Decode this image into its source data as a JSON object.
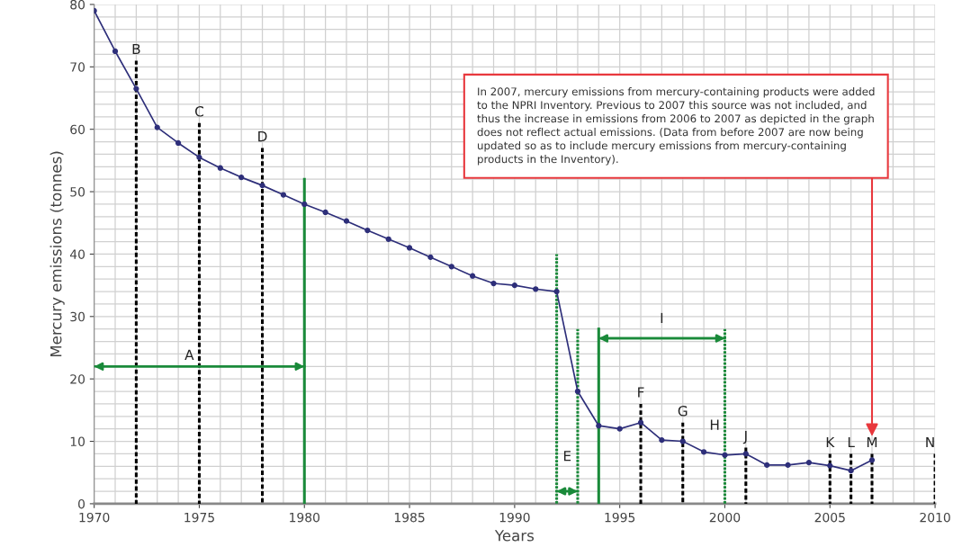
{
  "chart_data": {
    "type": "line",
    "xlabel": "Years",
    "ylabel": "Mercury emissions (tonnes)",
    "xlim": [
      1970,
      2010
    ],
    "ylim": [
      0,
      80
    ],
    "xticks": [
      1970,
      1975,
      1980,
      1985,
      1990,
      1995,
      2000,
      2005,
      2010
    ],
    "yticks": [
      0,
      10,
      20,
      30,
      40,
      50,
      60,
      70,
      80
    ],
    "grid": true,
    "series": [
      {
        "color": "#2e2f7a",
        "marker": "circle",
        "line_style": "solid",
        "x": [
          1970,
          1971,
          1972,
          1973,
          1974,
          1975,
          1976,
          1977,
          1978,
          1979,
          1980,
          1981,
          1982,
          1983,
          1984,
          1985,
          1986,
          1987,
          1988,
          1989,
          1990,
          1991,
          1992,
          1993,
          1994,
          1995,
          1996,
          1997,
          1998,
          1999,
          2000,
          2001,
          2002,
          2003,
          2004,
          2005,
          2006,
          2007
        ],
        "values": [
          79,
          72.5,
          66.5,
          60.3,
          57.8,
          55.5,
          53.8,
          52.3,
          51,
          49.5,
          48,
          46.7,
          45.3,
          43.8,
          42.4,
          41,
          39.5,
          38,
          36.5,
          35.3,
          35,
          34.4,
          34,
          18,
          12.5,
          12,
          13,
          10.2,
          10,
          8.3,
          7.8,
          8,
          6.2,
          6.2,
          6.6,
          6.1,
          5.3,
          7
        ]
      },
      {
        "color": "#000000",
        "line_style": "dashed",
        "x": [
          1972,
          1972
        ],
        "values": [
          0,
          71
        ]
      },
      {
        "color": "#000000",
        "line_style": "dashed",
        "x": [
          1975,
          1975
        ],
        "values": [
          0,
          61
        ]
      },
      {
        "color": "#000000",
        "line_style": "dashed",
        "x": [
          1978,
          1978
        ],
        "values": [
          0,
          57
        ]
      },
      {
        "color": "#1a8a3a",
        "line_style": "solid",
        "x": [
          1980,
          1980
        ],
        "values": [
          0,
          52
        ]
      },
      {
        "color": "#1a8a3a",
        "line_style": "dotted",
        "x": [
          1992,
          1992
        ],
        "values": [
          0,
          40
        ]
      },
      {
        "color": "#1a8a3a",
        "line_style": "dotted",
        "x": [
          1993,
          1993
        ],
        "values": [
          0,
          28
        ]
      },
      {
        "color": "#1a8a3a",
        "line_style": "solid",
        "x": [
          1994,
          1994
        ],
        "values": [
          0,
          28
        ]
      },
      {
        "color": "#1a8a3a",
        "line_style": "dotted",
        "x": [
          2000,
          2000
        ],
        "values": [
          0,
          28
        ]
      },
      {
        "color": "#000000",
        "line_style": "dashed",
        "x": [
          1996,
          1996
        ],
        "values": [
          0,
          16
        ]
      },
      {
        "color": "#000000",
        "line_style": "dashed",
        "x": [
          1998,
          1998
        ],
        "values": [
          0,
          13
        ]
      },
      {
        "color": "#000000",
        "line_style": "dashed",
        "x": [
          2001,
          2001
        ],
        "values": [
          0,
          9
        ]
      },
      {
        "color": "#000000",
        "line_style": "dashed",
        "x": [
          2005,
          2005
        ],
        "values": [
          0,
          8
        ]
      },
      {
        "color": "#000000",
        "line_style": "dashed",
        "x": [
          2006,
          2006
        ],
        "values": [
          0,
          8
        ]
      },
      {
        "color": "#000000",
        "line_style": "dashed",
        "x": [
          2007,
          2007
        ],
        "values": [
          0,
          8
        ]
      },
      {
        "color": "#000000",
        "line_style": "dashed",
        "x": [
          2010,
          2010
        ],
        "values": [
          0,
          8
        ]
      },
      {
        "color": "#1a8a3a",
        "line_style": "solid",
        "x": [
          1970,
          1980
        ],
        "values": [
          22,
          22
        ]
      },
      {
        "color": "#1a8a3a",
        "line_style": "solid",
        "x": [
          1992,
          1993
        ],
        "values": [
          2,
          2
        ]
      },
      {
        "color": "#1a8a3a",
        "line_style": "solid",
        "x": [
          1994,
          2000
        ],
        "values": [
          26.5,
          26.5
        ]
      }
    ],
    "annotations": [
      {
        "text": "A",
        "x": 1975,
        "y": 22
      },
      {
        "text": "B",
        "x": 1972,
        "y": 71
      },
      {
        "text": "C",
        "x": 1975,
        "y": 61
      },
      {
        "text": "D",
        "x": 1978,
        "y": 57
      },
      {
        "text": "E",
        "x": 1992.5,
        "y": 2
      },
      {
        "text": "F",
        "x": 1996,
        "y": 16
      },
      {
        "text": "G",
        "x": 1998,
        "y": 13
      },
      {
        "text": "H",
        "x": 2000,
        "y": 11
      },
      {
        "text": "I",
        "x": 1997,
        "y": 26.5
      },
      {
        "text": "J",
        "x": 2001,
        "y": 9
      },
      {
        "text": "K",
        "x": 2005,
        "y": 8
      },
      {
        "text": "L",
        "x": 2006,
        "y": 8
      },
      {
        "text": "M",
        "x": 2007,
        "y": 8
      },
      {
        "text": "N",
        "x": 2010,
        "y": 8
      },
      "In 2007, mercury emissions from mercury-containing products were added to the NPRI Inventory. Previous to 2007 this source was not included, and thus the increase in emissions from 2006 to 2007 as depicted in the graph does not reflect actual emissions. (Data from before 2007 are now being updated so as to include mercury emissions from mercury-containing products in the Inventory)."
    ]
  }
}
